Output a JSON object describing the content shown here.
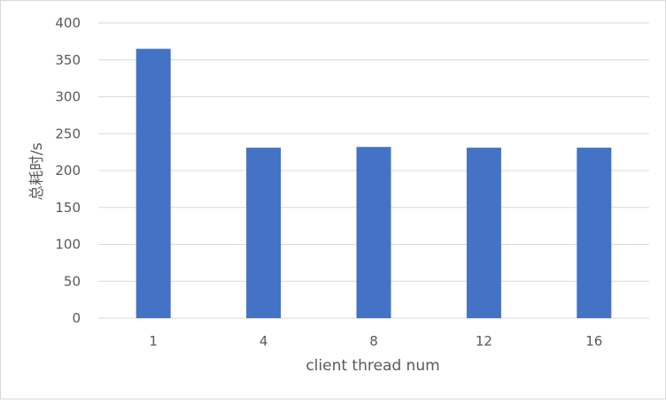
{
  "chart_data": {
    "type": "bar",
    "title": "",
    "categories": [
      "1",
      "4",
      "8",
      "12",
      "16"
    ],
    "values": [
      365,
      231,
      232,
      231,
      231
    ],
    "xlabel": "client thread num",
    "ylabel": "总耗时/s",
    "ylim": [
      0,
      400
    ],
    "yticks": [
      0,
      50,
      100,
      150,
      200,
      250,
      300,
      350,
      400
    ],
    "grid": true,
    "legend": "none",
    "bar_color": "#4472C4",
    "grid_color": "#d9d9d9"
  }
}
